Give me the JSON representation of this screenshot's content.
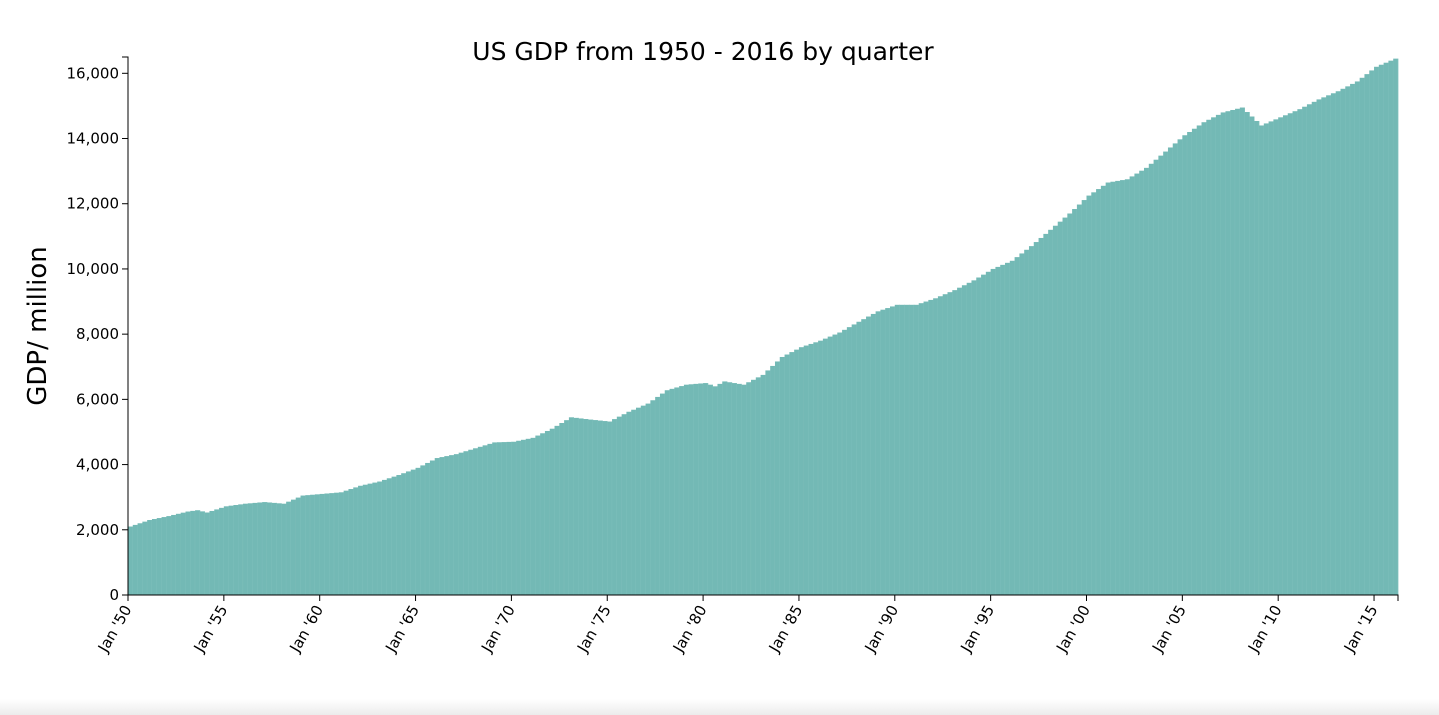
{
  "chart_data": {
    "type": "bar",
    "title": "US GDP from 1950 - 2016 by quarter",
    "xlabel": "",
    "ylabel": "GDP/ million",
    "bar_color": "#73b9b5",
    "ylim": [
      0,
      16500
    ],
    "yticks": [
      0,
      2000,
      4000,
      6000,
      8000,
      10000,
      12000,
      14000,
      16000
    ],
    "ytick_labels": [
      "0",
      "2,000",
      "4,000",
      "6,000",
      "8,000",
      "10,000",
      "12,000",
      "14,000",
      "16,000"
    ],
    "xlim": [
      1950,
      2016.25
    ],
    "xticks": [
      1950,
      1955,
      1960,
      1965,
      1970,
      1975,
      1980,
      1985,
      1990,
      1995,
      2000,
      2005,
      2010,
      2015
    ],
    "xtick_labels": [
      "Jan '50",
      "Jan '55",
      "Jan '60",
      "Jan '65",
      "Jan '70",
      "Jan '75",
      "Jan '80",
      "Jan '85",
      "Jan '90",
      "Jan '95",
      "Jan '00",
      "Jan '05",
      "Jan '10",
      "Jan '15"
    ],
    "grid": false,
    "quarter_anchors": {
      "x": [
        1950,
        1951,
        1952,
        1953,
        1953.5,
        1954,
        1955,
        1956,
        1957,
        1958,
        1959,
        1960,
        1961,
        1962,
        1963,
        1964,
        1965,
        1966,
        1967,
        1968,
        1969,
        1970,
        1971,
        1972,
        1973,
        1974,
        1975,
        1976,
        1977,
        1978,
        1979,
        1980,
        1980.5,
        1981,
        1982,
        1983,
        1984,
        1985,
        1986,
        1987,
        1988,
        1989,
        1990,
        1991,
        1992,
        1993,
        1994,
        1995,
        1996,
        1997,
        1998,
        1999,
        2000,
        2001,
        2002,
        2003,
        2004,
        2005,
        2006,
        2007,
        2008,
        2009,
        2010,
        2011,
        2012,
        2013,
        2014,
        2015,
        2016,
        2016.25
      ],
      "values": [
        2100,
        2300,
        2420,
        2560,
        2600,
        2530,
        2720,
        2800,
        2850,
        2800,
        3050,
        3100,
        3150,
        3350,
        3480,
        3680,
        3900,
        4200,
        4320,
        4500,
        4680,
        4700,
        4820,
        5100,
        5450,
        5380,
        5320,
        5620,
        5870,
        6280,
        6450,
        6500,
        6400,
        6550,
        6450,
        6750,
        7300,
        7600,
        7800,
        8050,
        8380,
        8700,
        8900,
        8900,
        9100,
        9350,
        9650,
        10000,
        10250,
        10700,
        11200,
        11700,
        12250,
        12650,
        12750,
        13100,
        13600,
        14100,
        14500,
        14800,
        14950,
        14400,
        14650,
        14900,
        15200,
        15450,
        15750,
        16200,
        16450,
        16500
      ]
    }
  }
}
